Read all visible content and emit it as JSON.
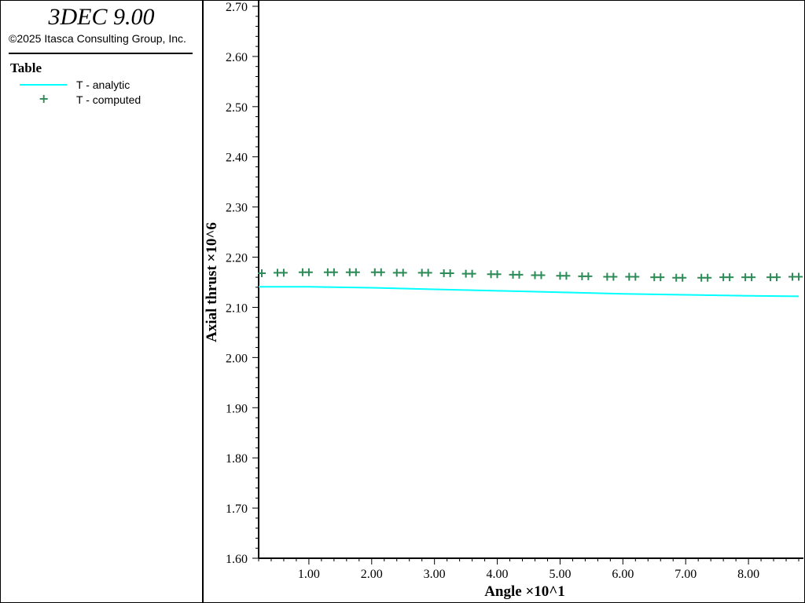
{
  "app": {
    "title": "3DEC 9.00",
    "copyright": "©2025 Itasca Consulting Group, Inc."
  },
  "legend": {
    "heading": "Table",
    "items": [
      {
        "label": "T - analytic",
        "style": "line",
        "color": "#00ffff"
      },
      {
        "label": "T - computed",
        "style": "plus",
        "color": "#2e8b57"
      }
    ]
  },
  "chart_data": {
    "type": "line",
    "xlabel": "Angle ×10^1",
    "ylabel": "Axial thrust ×10^6",
    "xlim": [
      0.2,
      8.8
    ],
    "ylim": [
      1.6,
      2.7
    ],
    "x_ticks": [
      "1.00",
      "2.00",
      "3.00",
      "4.00",
      "5.00",
      "6.00",
      "7.00",
      "8.00"
    ],
    "y_ticks": [
      "1.60",
      "1.70",
      "1.80",
      "1.90",
      "2.00",
      "2.10",
      "2.20",
      "2.30",
      "2.40",
      "2.50",
      "2.60",
      "2.70"
    ],
    "grid": false,
    "series": [
      {
        "name": "T - analytic",
        "style": "line",
        "color": "#00ffff",
        "x": [
          0.0,
          1.0,
          2.0,
          3.0,
          4.0,
          5.0,
          6.0,
          7.0,
          8.0,
          8.8
        ],
        "y": [
          2.141,
          2.141,
          2.139,
          2.136,
          2.133,
          2.13,
          2.127,
          2.125,
          2.123,
          2.122
        ]
      },
      {
        "name": "T - computed",
        "style": "plus",
        "color": "#2e8b57",
        "x": [
          0.25,
          0.5,
          0.6,
          0.9,
          1.0,
          1.3,
          1.4,
          1.65,
          1.75,
          2.05,
          2.15,
          2.4,
          2.5,
          2.8,
          2.9,
          3.15,
          3.25,
          3.5,
          3.6,
          3.9,
          4.0,
          4.25,
          4.35,
          4.6,
          4.7,
          5.0,
          5.1,
          5.35,
          5.45,
          5.75,
          5.85,
          6.1,
          6.2,
          6.5,
          6.6,
          6.85,
          6.95,
          7.25,
          7.35,
          7.6,
          7.7,
          7.95,
          8.05,
          8.35,
          8.45,
          8.7,
          8.8
        ],
        "y": [
          2.168,
          2.169,
          2.169,
          2.17,
          2.17,
          2.17,
          2.17,
          2.17,
          2.17,
          2.17,
          2.17,
          2.169,
          2.169,
          2.169,
          2.169,
          2.168,
          2.168,
          2.167,
          2.167,
          2.166,
          2.166,
          2.165,
          2.165,
          2.164,
          2.164,
          2.163,
          2.163,
          2.162,
          2.162,
          2.161,
          2.161,
          2.161,
          2.161,
          2.16,
          2.16,
          2.159,
          2.159,
          2.159,
          2.159,
          2.16,
          2.16,
          2.16,
          2.16,
          2.16,
          2.16,
          2.161,
          2.161
        ]
      }
    ]
  }
}
